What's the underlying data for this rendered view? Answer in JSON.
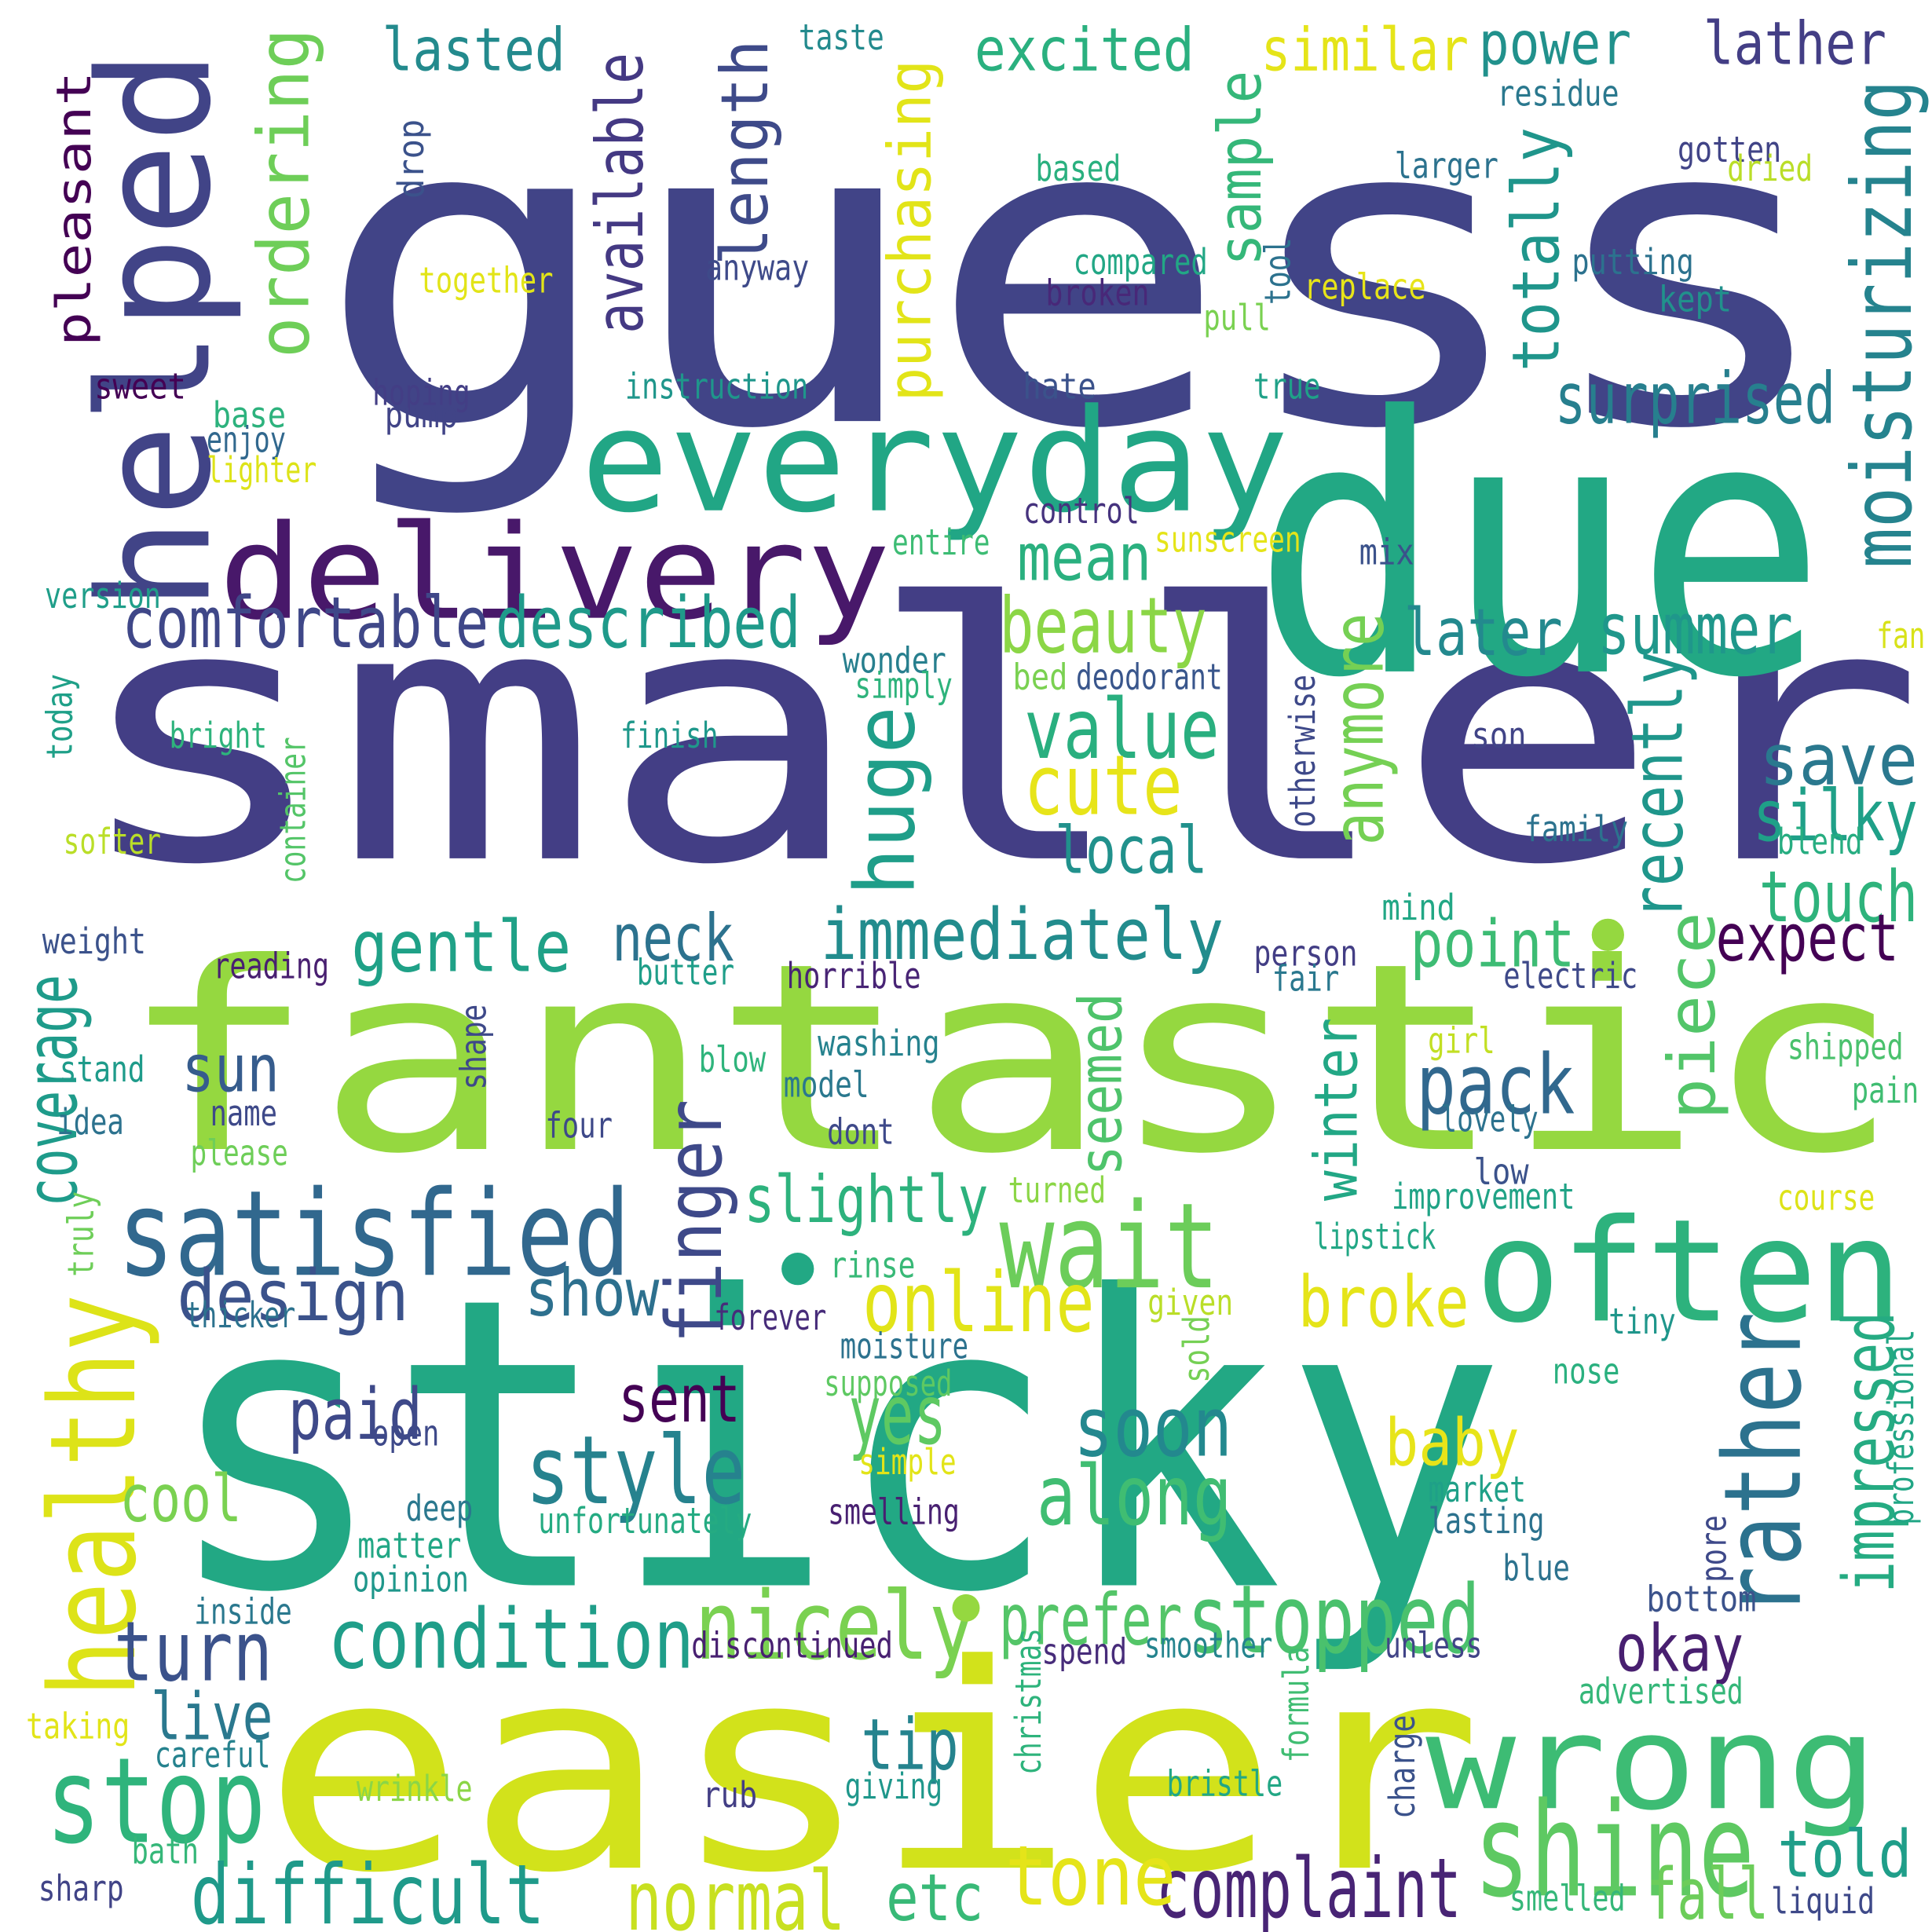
{
  "words": [
    {
      "text": "guess",
      "color": "#414487"
    },
    {
      "text": "smaller",
      "color": "#433e85"
    },
    {
      "text": "sticky",
      "color": "#22a884"
    },
    {
      "text": "fantastic",
      "color": "#95d840"
    },
    {
      "text": "easier",
      "color": "#d2e21b"
    },
    {
      "text": "due",
      "color": "#22a884"
    },
    {
      "text": "helped",
      "color": "#414487"
    },
    {
      "text": "everyday",
      "color": "#21a685"
    },
    {
      "text": "delivery",
      "color": "#48186a"
    },
    {
      "text": "often",
      "color": "#2db27d"
    },
    {
      "text": "wrong",
      "color": "#3dbc74"
    },
    {
      "text": "satisfied",
      "color": "#31688e"
    },
    {
      "text": "healthy",
      "color": "#dde318"
    },
    {
      "text": "wait",
      "color": "#6ccd5a"
    },
    {
      "text": "rather",
      "color": "#2c728e"
    },
    {
      "text": "stop",
      "color": "#2fb47c"
    },
    {
      "text": "shine",
      "color": "#5ec962"
    },
    {
      "text": "stopped",
      "color": "#4ac16d"
    },
    {
      "text": "nicely",
      "color": "#7ad151"
    },
    {
      "text": "condition",
      "color": "#1f9e89"
    },
    {
      "text": "difficult",
      "color": "#1f9a8a"
    },
    {
      "text": "complaint",
      "color": "#482475"
    },
    {
      "text": "normal",
      "color": "#c8e020"
    },
    {
      "text": "style",
      "color": "#26828e"
    },
    {
      "text": "along",
      "color": "#40bd72"
    },
    {
      "text": "soon",
      "color": "#23888e"
    },
    {
      "text": "online",
      "color": "#e2e418"
    },
    {
      "text": "impressed",
      "color": "#25ab82"
    },
    {
      "text": "moisturizing",
      "color": "#25838e"
    },
    {
      "text": "finger",
      "color": "#3e4989"
    },
    {
      "text": "design",
      "color": "#3b528b"
    },
    {
      "text": "turn",
      "color": "#3b528b"
    },
    {
      "text": "tone",
      "color": "#e5e419"
    },
    {
      "text": "pack",
      "color": "#31688e"
    },
    {
      "text": "immediately",
      "color": "#228c8d"
    },
    {
      "text": "prefer",
      "color": "#54c568"
    },
    {
      "text": "comfortable",
      "color": "#3f4788"
    },
    {
      "text": "described",
      "color": "#1f9a8a"
    },
    {
      "text": "ordering",
      "color": "#6ece58"
    },
    {
      "text": "value",
      "color": "#29af7f"
    },
    {
      "text": "cute",
      "color": "#e7e419"
    },
    {
      "text": "beauty",
      "color": "#8bd646"
    },
    {
      "text": "length",
      "color": "#3e4a89"
    },
    {
      "text": "purchasing",
      "color": "#e2e418"
    },
    {
      "text": "available",
      "color": "#443983"
    },
    {
      "text": "sample",
      "color": "#35b779"
    },
    {
      "text": "totally",
      "color": "#1f958b"
    },
    {
      "text": "surprised",
      "color": "#277f8e"
    },
    {
      "text": "summer",
      "color": "#1f978b"
    },
    {
      "text": "save",
      "color": "#2a788e"
    },
    {
      "text": "silky",
      "color": "#1fa088"
    },
    {
      "text": "touch",
      "color": "#2eb37c"
    },
    {
      "text": "expect",
      "color": "#440154"
    },
    {
      "text": "point",
      "color": "#3dbc74"
    },
    {
      "text": "recently",
      "color": "#1f968b"
    },
    {
      "text": "anymore",
      "color": "#75d054"
    },
    {
      "text": "piece",
      "color": "#52c569"
    },
    {
      "text": "later",
      "color": "#23898e"
    },
    {
      "text": "local",
      "color": "#21918c"
    },
    {
      "text": "mean",
      "color": "#2ab07f"
    },
    {
      "text": "huge",
      "color": "#1f9e89"
    },
    {
      "text": "gentle",
      "color": "#1fa187"
    },
    {
      "text": "neck",
      "color": "#2c728e"
    },
    {
      "text": "sun",
      "color": "#365c8d"
    },
    {
      "text": "seemed",
      "color": "#4ec36b"
    },
    {
      "text": "winter",
      "color": "#22a785"
    },
    {
      "text": "coverage",
      "color": "#1e9b8a"
    },
    {
      "text": "slightly",
      "color": "#2db27d"
    },
    {
      "text": "show",
      "color": "#2d708e"
    },
    {
      "text": "broke",
      "color": "#e5e419"
    },
    {
      "text": "sent",
      "color": "#440154"
    },
    {
      "text": "yes",
      "color": "#5ec962"
    },
    {
      "text": "paid",
      "color": "#3e4989"
    },
    {
      "text": "baby",
      "color": "#e7e419"
    },
    {
      "text": "cool",
      "color": "#7ad151"
    },
    {
      "text": "okay",
      "color": "#481f70"
    },
    {
      "text": "live",
      "color": "#2a788e"
    },
    {
      "text": "tip",
      "color": "#25838e"
    },
    {
      "text": "told",
      "color": "#1f9e89"
    },
    {
      "text": "fall",
      "color": "#6ccd5a"
    },
    {
      "text": "etc",
      "color": "#38b977"
    },
    {
      "text": "pleasant",
      "color": "#440154"
    },
    {
      "text": "lasted",
      "color": "#238a8d"
    },
    {
      "text": "excited",
      "color": "#2ab07f"
    },
    {
      "text": "similar",
      "color": "#e5e419"
    },
    {
      "text": "power",
      "color": "#21918c"
    },
    {
      "text": "lather",
      "color": "#433e85"
    },
    {
      "text": "taste",
      "color": "#238a8d"
    },
    {
      "text": "residue",
      "color": "#2a788e"
    },
    {
      "text": "based",
      "color": "#2ab07f"
    },
    {
      "text": "larger",
      "color": "#2c728e"
    },
    {
      "text": "gotten",
      "color": "#414487"
    },
    {
      "text": "dried",
      "color": "#bade28"
    },
    {
      "text": "drop",
      "color": "#3b528b"
    },
    {
      "text": "together",
      "color": "#e2e418"
    },
    {
      "text": "anyway",
      "color": "#3e4a89"
    },
    {
      "text": "compared",
      "color": "#22a785"
    },
    {
      "text": "broken",
      "color": "#482878"
    },
    {
      "text": "tool",
      "color": "#2c728e"
    },
    {
      "text": "replace",
      "color": "#e7e419"
    },
    {
      "text": "putting",
      "color": "#2c728e"
    },
    {
      "text": "kept",
      "color": "#21918c"
    },
    {
      "text": "pull",
      "color": "#7ad151"
    },
    {
      "text": "sweet",
      "color": "#440154"
    },
    {
      "text": "hoping",
      "color": "#433e85"
    },
    {
      "text": "pump",
      "color": "#414487"
    },
    {
      "text": "instruction",
      "color": "#1f968b"
    },
    {
      "text": "hate",
      "color": "#3b528b"
    },
    {
      "text": "true",
      "color": "#1fa188"
    },
    {
      "text": "base",
      "color": "#2db27d"
    },
    {
      "text": "enjoy",
      "color": "#31688e"
    },
    {
      "text": "lighter",
      "color": "#dde318"
    },
    {
      "text": "control",
      "color": "#46337e"
    },
    {
      "text": "entire",
      "color": "#3dbc74"
    },
    {
      "text": "sunscreen",
      "color": "#e5e419"
    },
    {
      "text": "mix",
      "color": "#3b528b"
    },
    {
      "text": "version",
      "color": "#1f9e89"
    },
    {
      "text": "fan",
      "color": "#d8e219"
    },
    {
      "text": "wonder",
      "color": "#277f8e"
    },
    {
      "text": "simply",
      "color": "#2eb37c"
    },
    {
      "text": "bed",
      "color": "#7ad151"
    },
    {
      "text": "deodorant",
      "color": "#39568c"
    },
    {
      "text": "otherwise",
      "color": "#3e4989"
    },
    {
      "text": "today",
      "color": "#1fa088"
    },
    {
      "text": "bright",
      "color": "#2eb37c"
    },
    {
      "text": "finish",
      "color": "#1f988b"
    },
    {
      "text": "son",
      "color": "#414487"
    },
    {
      "text": "container",
      "color": "#54c568"
    },
    {
      "text": "softer",
      "color": "#bade28"
    },
    {
      "text": "family",
      "color": "#2c728e"
    },
    {
      "text": "blend",
      "color": "#27ad81"
    },
    {
      "text": "mind",
      "color": "#22a785"
    },
    {
      "text": "weight",
      "color": "#3b528b"
    },
    {
      "text": "reading",
      "color": "#481f70"
    },
    {
      "text": "butter",
      "color": "#1f9e89"
    },
    {
      "text": "horrible",
      "color": "#482475"
    },
    {
      "text": "person",
      "color": "#433e85"
    },
    {
      "text": "fair",
      "color": "#2a788e"
    },
    {
      "text": "electric",
      "color": "#3e4989"
    },
    {
      "text": "stand",
      "color": "#1e9b8a"
    },
    {
      "text": "shape",
      "color": "#3e4989"
    },
    {
      "text": "washing",
      "color": "#26828e"
    },
    {
      "text": "blow",
      "color": "#2fb47c"
    },
    {
      "text": "model",
      "color": "#2a788e"
    },
    {
      "text": "girl",
      "color": "#c2df23"
    },
    {
      "text": "shipped",
      "color": "#4ac16d"
    },
    {
      "text": "pain",
      "color": "#40bd72"
    },
    {
      "text": "idea",
      "color": "#2c728e"
    },
    {
      "text": "name",
      "color": "#3e4989"
    },
    {
      "text": "four",
      "color": "#3e4989"
    },
    {
      "text": "dont",
      "color": "#3e4989"
    },
    {
      "text": "lovely",
      "color": "#2c728e"
    },
    {
      "text": "please",
      "color": "#6ece58"
    },
    {
      "text": "turned",
      "color": "#8bd646"
    },
    {
      "text": "low",
      "color": "#3b528b"
    },
    {
      "text": "improvement",
      "color": "#20a386"
    },
    {
      "text": "course",
      "color": "#dde318"
    },
    {
      "text": "truly",
      "color": "#6ece58"
    },
    {
      "text": "lipstick",
      "color": "#22a785"
    },
    {
      "text": "rinse",
      "color": "#38b977"
    },
    {
      "text": "thicker",
      "color": "#2c728e"
    },
    {
      "text": "forever",
      "color": "#472c7a"
    },
    {
      "text": "given",
      "color": "#bade28"
    },
    {
      "text": "tiny",
      "color": "#1f968b"
    },
    {
      "text": "moisture",
      "color": "#2c728e"
    },
    {
      "text": "sold",
      "color": "#75d054"
    },
    {
      "text": "professional",
      "color": "#21a685"
    },
    {
      "text": "supposed",
      "color": "#5ec962"
    },
    {
      "text": "nose",
      "color": "#2ab07f"
    },
    {
      "text": "open",
      "color": "#3e4989"
    },
    {
      "text": "simple",
      "color": "#e2e418"
    },
    {
      "text": "market",
      "color": "#1fa088"
    },
    {
      "text": "deep",
      "color": "#2a788e"
    },
    {
      "text": "unfortunately",
      "color": "#25ab82"
    },
    {
      "text": "smelling",
      "color": "#482071"
    },
    {
      "text": "lasting",
      "color": "#2c728e"
    },
    {
      "text": "pore",
      "color": "#3e4989"
    },
    {
      "text": "matter",
      "color": "#22a785"
    },
    {
      "text": "blue",
      "color": "#2c728e"
    },
    {
      "text": "opinion",
      "color": "#1f978b"
    },
    {
      "text": "inside",
      "color": "#2a788e"
    },
    {
      "text": "bottom",
      "color": "#3b528b"
    },
    {
      "text": "discontinued",
      "color": "#482071"
    },
    {
      "text": "christmas",
      "color": "#2eb37c"
    },
    {
      "text": "spend",
      "color": "#472c7a"
    },
    {
      "text": "smoother",
      "color": "#25848e"
    },
    {
      "text": "formula",
      "color": "#40bd72"
    },
    {
      "text": "unless",
      "color": "#414487"
    },
    {
      "text": "advertised",
      "color": "#35b779"
    },
    {
      "text": "taking",
      "color": "#e2e418"
    },
    {
      "text": "careful",
      "color": "#26828e"
    },
    {
      "text": "charge",
      "color": "#3b528b"
    },
    {
      "text": "wrinkle",
      "color": "#8bd646"
    },
    {
      "text": "rub",
      "color": "#433e85"
    },
    {
      "text": "giving",
      "color": "#1f978b"
    },
    {
      "text": "bristle",
      "color": "#22a785"
    },
    {
      "text": "bath",
      "color": "#35b779"
    },
    {
      "text": "sharp",
      "color": "#414487"
    },
    {
      "text": "smelled",
      "color": "#35b779"
    },
    {
      "text": "liquid",
      "color": "#3e4989"
    }
  ]
}
